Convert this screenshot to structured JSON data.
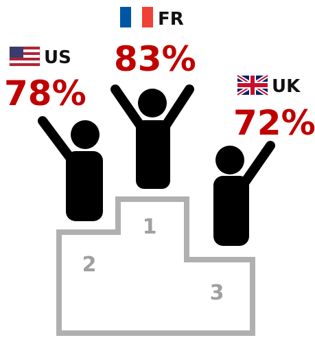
{
  "podium": [
    {
      "country": "US",
      "share": "78%",
      "place": "2"
    },
    {
      "country": "FR",
      "share": "83%",
      "place": "1"
    },
    {
      "country": "UK",
      "share": "72%",
      "place": "3"
    }
  ]
}
